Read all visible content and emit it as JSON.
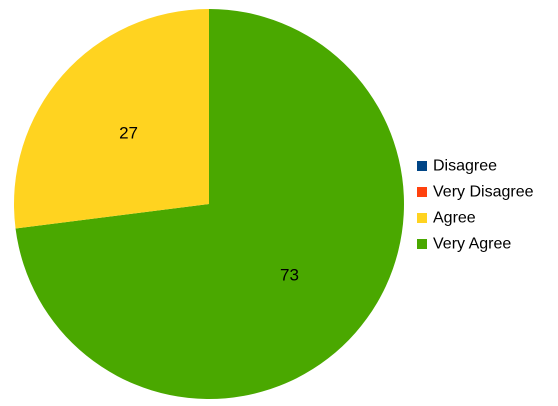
{
  "chart_data": {
    "type": "pie",
    "title": "",
    "start_angle_deg": 0,
    "direction": "clockwise",
    "legend_position": "right",
    "categories": [
      "Disagree",
      "Very Disagree",
      "Agree",
      "Very Agree"
    ],
    "values": [
      0,
      0,
      27,
      73
    ],
    "data_labels": [
      "",
      "",
      "27",
      "73"
    ],
    "colors": [
      "#004586",
      "#ff420e",
      "#ffd320",
      "#4aa800"
    ]
  }
}
